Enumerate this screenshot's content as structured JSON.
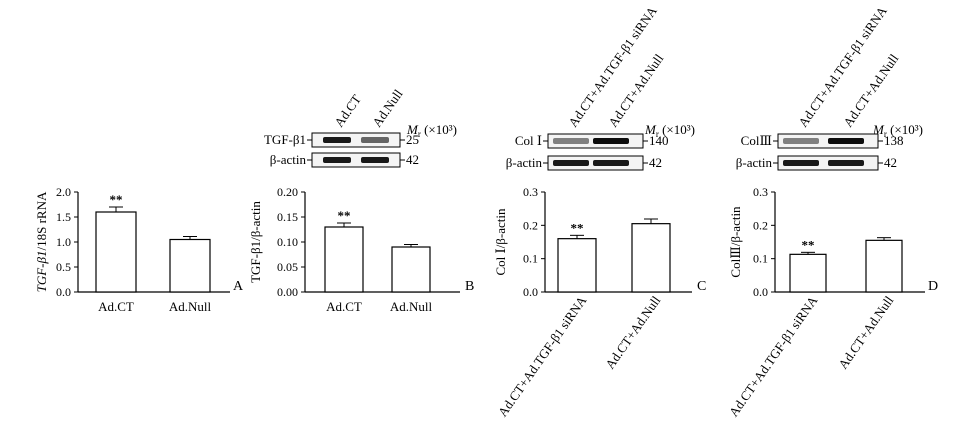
{
  "chart_data": [
    {
      "type": "bar",
      "panel": "A",
      "ylabel_italic": "TGF-β1",
      "ylabel_rest": "/18S rRNA",
      "categories": [
        "Ad.CT",
        "Ad.Null"
      ],
      "values": [
        1.6,
        1.05
      ],
      "errors": [
        0.1,
        0.06
      ],
      "significance": [
        "**",
        ""
      ],
      "ylim": [
        0,
        2.0
      ],
      "yticks": [
        "0.0",
        "0.5",
        "1.0",
        "1.5",
        "2.0"
      ]
    },
    {
      "type": "bar",
      "panel": "B",
      "ylabel": "TGF-β1/β-actin",
      "categories": [
        "Ad.CT",
        "Ad.Null"
      ],
      "values": [
        0.13,
        0.09
      ],
      "errors": [
        0.008,
        0.005
      ],
      "significance": [
        "**",
        ""
      ],
      "ylim": [
        0,
        0.2
      ],
      "yticks": [
        "0.00",
        "0.05",
        "0.10",
        "0.15",
        "0.20"
      ],
      "blot": {
        "lanes": [
          "Ad.CT",
          "Ad.Null"
        ],
        "rows": [
          {
            "label": "TGF-β1",
            "mw": "25",
            "intensity": [
              0.9,
              0.6
            ]
          },
          {
            "label": "β-actin",
            "mw": "42",
            "intensity": [
              0.9,
              0.9
            ]
          }
        ],
        "mr_label": "M",
        "mr_sub": "r",
        "mr_unit": "(×10³)"
      }
    },
    {
      "type": "bar",
      "panel": "C",
      "ylabel": "Col Ⅰ/β-actin",
      "categories": [
        "Ad.CT+Ad.TGF-β1 siRNA",
        "Ad.CT+Ad.Null"
      ],
      "values": [
        0.16,
        0.205
      ],
      "errors": [
        0.01,
        0.014
      ],
      "significance": [
        "**",
        ""
      ],
      "ylim": [
        0,
        0.3
      ],
      "yticks": [
        "0.0",
        "0.1",
        "0.2",
        "0.3"
      ],
      "blot": {
        "lanes": [
          "Ad.CT+Ad.TGF-β1 siRNA",
          "Ad.CT+Ad.Null"
        ],
        "rows": [
          {
            "label": "Col Ⅰ",
            "mw": "140",
            "intensity": [
              0.5,
              0.95
            ]
          },
          {
            "label": "β-actin",
            "mw": "42",
            "intensity": [
              0.9,
              0.9
            ]
          }
        ],
        "mr_label": "M",
        "mr_sub": "r",
        "mr_unit": "(×10³)"
      }
    },
    {
      "type": "bar",
      "panel": "D",
      "ylabel": "ColⅢ/β-actin",
      "categories": [
        "Ad.CT+Ad.TGF-β1 siRNA",
        "Ad.CT+Ad.Null"
      ],
      "values": [
        0.113,
        0.155
      ],
      "errors": [
        0.006,
        0.008
      ],
      "significance": [
        "**",
        ""
      ],
      "ylim": [
        0,
        0.3
      ],
      "yticks": [
        "0.0",
        "0.1",
        "0.2",
        "0.3"
      ],
      "blot": {
        "lanes": [
          "Ad.CT+Ad.TGF-β1 siRNA",
          "Ad.CT+Ad.Null"
        ],
        "rows": [
          {
            "label": "ColⅢ",
            "mw": "138",
            "intensity": [
              0.5,
              0.95
            ]
          },
          {
            "label": "β-actin",
            "mw": "42",
            "intensity": [
              0.9,
              0.9
            ]
          }
        ],
        "mr_label": "M",
        "mr_sub": "r",
        "mr_unit": "(×10³)"
      }
    }
  ]
}
